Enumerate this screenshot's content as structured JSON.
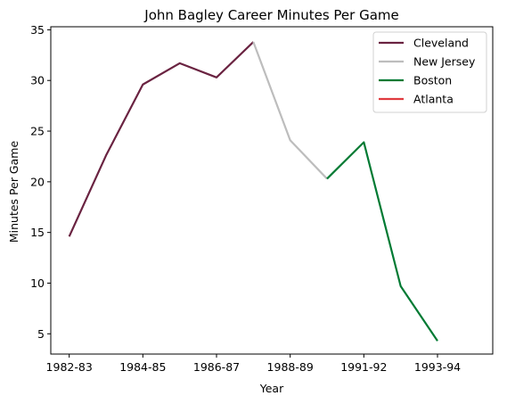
{
  "chart_data": {
    "type": "line",
    "title": "John Bagley  Career Minutes Per Game",
    "xlabel": "Year",
    "ylabel": "Minutes Per Game",
    "x_index_range": [
      0,
      11
    ],
    "xlim": [
      -0.5,
      11.5
    ],
    "ylim": [
      3.0,
      35.3
    ],
    "x_ticks": [
      {
        "index": 0,
        "label": "1982-83"
      },
      {
        "index": 2,
        "label": "1984-85"
      },
      {
        "index": 4,
        "label": "1986-87"
      },
      {
        "index": 6,
        "label": "1988-89"
      },
      {
        "index": 8,
        "label": "1991-92"
      },
      {
        "index": 10,
        "label": "1993-94"
      }
    ],
    "y_ticks": [
      5,
      10,
      15,
      20,
      25,
      30,
      35
    ],
    "grid": false,
    "legend": "top-right",
    "series": [
      {
        "name": "Cleveland",
        "color": "#6a2341",
        "points": [
          [
            0,
            14.6
          ],
          [
            1,
            22.6
          ],
          [
            2,
            29.6
          ],
          [
            3,
            31.7
          ],
          [
            4,
            30.3
          ],
          [
            5,
            33.8
          ]
        ]
      },
      {
        "name": "New Jersey",
        "color": "#bdbdbd",
        "points": [
          [
            5,
            33.8
          ],
          [
            6,
            24.1
          ],
          [
            7,
            20.3
          ]
        ]
      },
      {
        "name": "Boston",
        "color": "#007a33",
        "points": [
          [
            7,
            20.3
          ],
          [
            8,
            23.9
          ],
          [
            9,
            9.7
          ],
          [
            10,
            4.3
          ]
        ]
      },
      {
        "name": "Atlanta",
        "color": "#e03a3e",
        "points": []
      }
    ]
  }
}
